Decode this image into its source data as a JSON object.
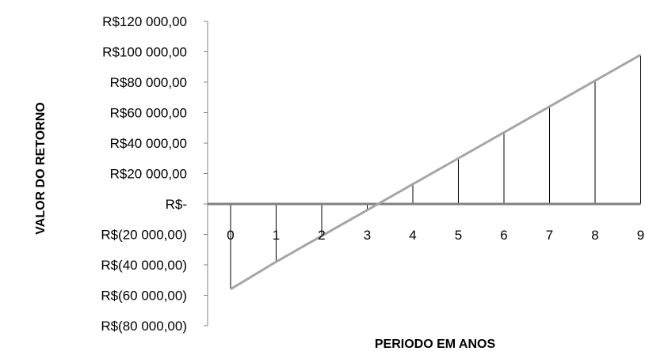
{
  "chart_data": {
    "type": "line",
    "title": "",
    "xlabel": "PERIODO EM ANOS",
    "ylabel": "VALOR DO RETORNO",
    "x": [
      0,
      1,
      2,
      3,
      4,
      5,
      6,
      7,
      8,
      9
    ],
    "x_tick_labels": [
      "0",
      "1",
      "2",
      "3",
      "4",
      "5",
      "6",
      "7",
      "8",
      "9"
    ],
    "series": [
      {
        "values": [
          -56000,
          -38000,
          -21000,
          -4000,
          13000,
          30000,
          47000,
          64000,
          81000,
          98000
        ]
      }
    ],
    "drop_lines": true,
    "ylim": [
      -80000,
      120000
    ],
    "y_ticks": [
      120000,
      100000,
      80000,
      60000,
      40000,
      20000,
      0,
      -20000,
      -40000,
      -60000,
      -80000
    ],
    "y_tick_labels": [
      "R$120 000,00",
      "R$100 000,00",
      "R$80 000,00",
      "R$60 000,00",
      "R$40 000,00",
      "R$20 000,00",
      "R$-",
      "R$(20 000,00)",
      "R$(40 000,00)",
      "R$(60 000,00)",
      "R$(80 000,00)"
    ],
    "grid": false,
    "line_color": "#a6a6a6",
    "axis_color": "#808080",
    "drop_line_color": "#000000"
  }
}
